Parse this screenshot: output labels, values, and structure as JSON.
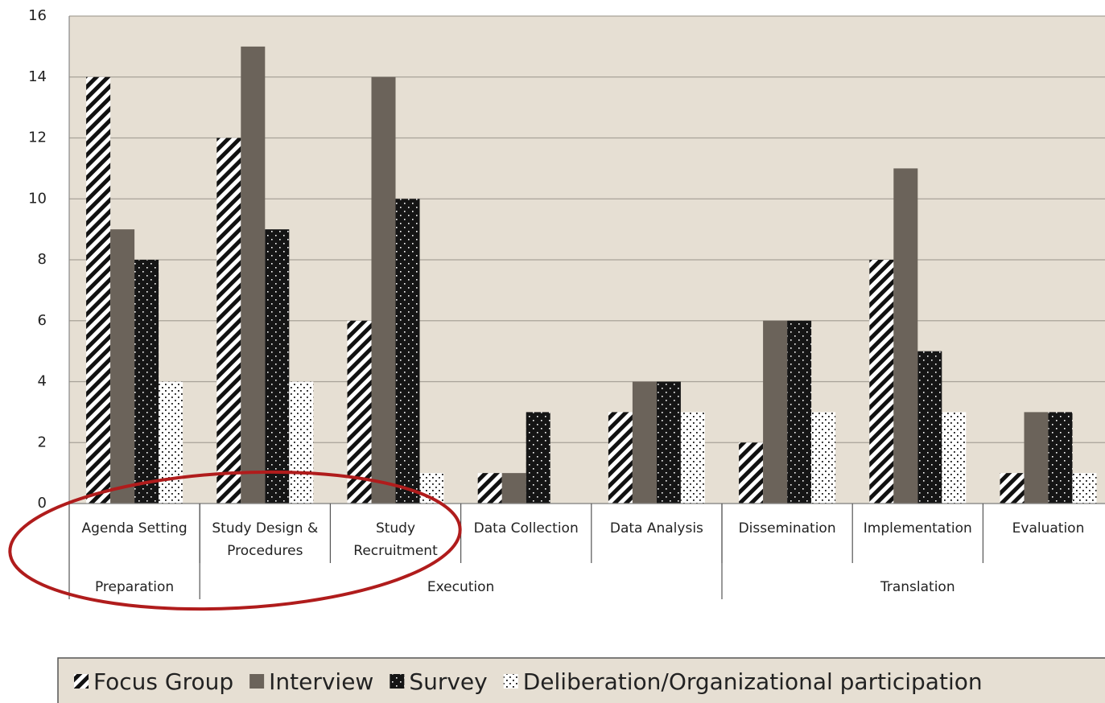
{
  "chart_data": {
    "type": "bar",
    "categories": [
      "Agenda Setting",
      "Study Design & Procedures",
      "Study Recruitment",
      "Data Collection",
      "Data Analysis",
      "Dissemination",
      "Implementation",
      "Evaluation"
    ],
    "groups": [
      "Preparation",
      "Execution",
      "Translation"
    ],
    "series": [
      {
        "name": "Focus Group",
        "color": "#111111",
        "values": [
          14,
          12,
          6,
          1,
          3,
          2,
          8,
          1
        ]
      },
      {
        "name": "Interview",
        "color": "#6b635a",
        "values": [
          9,
          15,
          14,
          1,
          4,
          6,
          11,
          3
        ]
      },
      {
        "name": "Survey",
        "color": "#151515",
        "values": [
          8,
          9,
          10,
          3,
          4,
          6,
          5,
          3
        ]
      },
      {
        "name": "Deliberation/Organizational participation",
        "color": "#ffffff",
        "values": [
          4,
          4,
          1,
          0,
          3,
          3,
          3,
          1
        ]
      }
    ],
    "ylim": [
      0,
      16
    ],
    "yticks": [
      0,
      2,
      4,
      6,
      8,
      10,
      12,
      14,
      16
    ],
    "grid": true
  }
}
